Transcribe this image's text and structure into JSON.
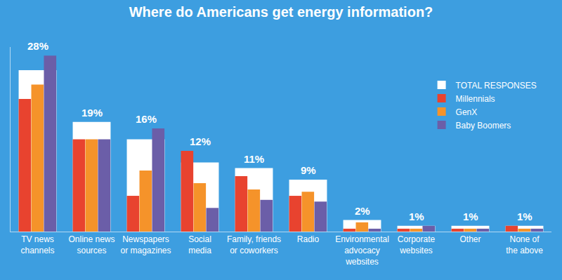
{
  "chart_data": {
    "type": "bar",
    "title": "Where do Americans get energy information?",
    "categories": [
      "TV news\nchannels",
      "Online news\nsources",
      "Newspapers\nor magazines",
      "Social\nmedia",
      "Family, friends\nor coworkers",
      "Radio",
      "Environmental\nadvocacy\nwebsites",
      "Corporate\nwebsites",
      "Other",
      "None of\nthe above"
    ],
    "series": [
      {
        "name": "TOTAL RESPONSES",
        "color": "#ffffff",
        "values": [
          28,
          19,
          16,
          12,
          11,
          9,
          2,
          1,
          1,
          1
        ],
        "value_labels": [
          "28%",
          "19%",
          "16%",
          "12%",
          "11%",
          "9%",
          "2%",
          "1%",
          "1%",
          "1%"
        ]
      },
      {
        "name": "Millennials",
        "color": "#e8432f",
        "values": [
          23,
          16,
          6.2,
          14,
          9.6,
          6.2,
          0.5,
          0.5,
          0.5,
          1
        ]
      },
      {
        "name": "GenX",
        "color": "#f5932a",
        "values": [
          25.5,
          16,
          10.6,
          8.4,
          7.3,
          6.9,
          1.6,
          0.5,
          0.5,
          0.5
        ]
      },
      {
        "name": "Baby Boomers",
        "color": "#6b5ea8",
        "values": [
          30.5,
          16,
          17.9,
          4.1,
          5.5,
          5.2,
          0.5,
          1,
          0.5,
          0.5
        ]
      }
    ],
    "ylim": [
      0,
      32
    ],
    "data_labels": true,
    "tick_labels": "x",
    "legend": "upper right",
    "grid": false
  }
}
